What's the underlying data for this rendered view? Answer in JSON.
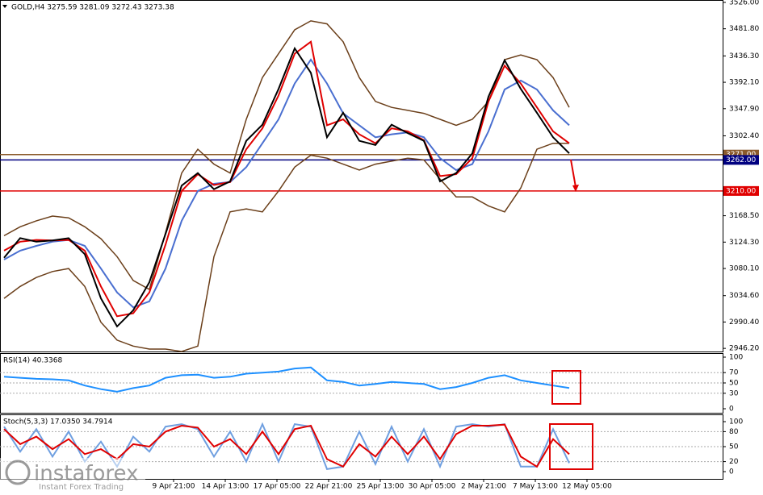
{
  "chart_data": [
    {
      "type": "line",
      "title": "GOLD,H4 3275.59 3281.09 3272.43 3273.38",
      "ylim": [
        2941,
        3530
      ],
      "yticks": [
        {
          "value": 3526,
          "label": "3526.00"
        },
        {
          "value": 3481.8,
          "label": "3481.80"
        },
        {
          "value": 3436.3,
          "label": "3436.30"
        },
        {
          "value": 3392.1,
          "label": "3392.10"
        },
        {
          "value": 3347.9,
          "label": "3347.90"
        },
        {
          "value": 3302.4,
          "label": "3302.40"
        },
        {
          "value": 3168.5,
          "label": "3168.50"
        },
        {
          "value": 3124.3,
          "label": "3124.30"
        },
        {
          "value": 3080.1,
          "label": "3080.10"
        },
        {
          "value": 3034.6,
          "label": "3034.60"
        },
        {
          "value": 2990.4,
          "label": "2990.40"
        },
        {
          "value": 2946.2,
          "label": "2946.20"
        }
      ],
      "levels": [
        {
          "value": 3271,
          "label": "3271.00",
          "color": "#8b5a2b"
        },
        {
          "value": 3262,
          "label": "3262.00",
          "color": "#000080"
        },
        {
          "value": 3210,
          "label": "3210.00",
          "color": "#e00000"
        }
      ],
      "series": [
        {
          "color": "#6b3f1a",
          "values": [
            3135,
            3150,
            3160,
            3168,
            3165,
            3150,
            3130,
            3100,
            3060,
            3045,
            3140,
            3240,
            3280,
            3255,
            3240,
            3330,
            3400,
            3440,
            3480,
            3495,
            3490,
            3460,
            3400,
            3360,
            3350,
            3345,
            3340,
            3330,
            3320,
            3330,
            3360,
            3430,
            3438,
            3430,
            3400,
            3350
          ]
        },
        {
          "color": "#6b3f1a",
          "values": [
            3030,
            3050,
            3065,
            3075,
            3080,
            3050,
            2990,
            2960,
            2950,
            2945,
            2945,
            2941,
            2950,
            3100,
            3175,
            3180,
            3175,
            3210,
            3250,
            3270,
            3265,
            3255,
            3245,
            3255,
            3260,
            3265,
            3262,
            3230,
            3200,
            3200,
            3185,
            3175,
            3215,
            3280,
            3290,
            3290
          ]
        },
        {
          "color": "#4a6fd0",
          "values": [
            3095,
            3110,
            3118,
            3125,
            3128,
            3118,
            3080,
            3040,
            3015,
            3025,
            3080,
            3160,
            3210,
            3222,
            3225,
            3250,
            3290,
            3330,
            3390,
            3430,
            3390,
            3340,
            3320,
            3300,
            3305,
            3308,
            3300,
            3265,
            3245,
            3255,
            3310,
            3380,
            3395,
            3380,
            3345,
            3320
          ]
        },
        {
          "color": "#e00000",
          "values": [
            3110,
            3125,
            3128,
            3127,
            3128,
            3110,
            3050,
            3000,
            3005,
            3040,
            3120,
            3210,
            3238,
            3220,
            3225,
            3280,
            3315,
            3370,
            3440,
            3460,
            3320,
            3330,
            3305,
            3290,
            3315,
            3310,
            3295,
            3235,
            3238,
            3265,
            3360,
            3420,
            3390,
            3350,
            3310,
            3290
          ]
        },
        {
          "color": "#000000",
          "values": [
            3098,
            3131,
            3125,
            3127,
            3131,
            3104,
            3030,
            2983,
            3010,
            3057,
            3138,
            3219,
            3240,
            3213,
            3226,
            3294,
            3321,
            3381,
            3449,
            3408,
            3300,
            3341,
            3294,
            3287,
            3321,
            3307,
            3294,
            3226,
            3240,
            3273,
            3368,
            3429,
            3381,
            3341,
            3300,
            3273
          ]
        }
      ]
    },
    {
      "type": "line",
      "title": "RSI(14) 40.3368",
      "ylim": [
        0,
        100
      ],
      "yticks": [
        100,
        70,
        50,
        30,
        0
      ],
      "levels": [
        70,
        50,
        30
      ],
      "series": [
        {
          "color": "#1e90ff",
          "values": [
            62,
            60,
            58,
            57,
            55,
            45,
            38,
            33,
            40,
            45,
            60,
            65,
            66,
            60,
            62,
            68,
            70,
            72,
            78,
            80,
            55,
            52,
            45,
            48,
            52,
            50,
            48,
            38,
            42,
            50,
            60,
            65,
            55,
            50,
            45,
            40.3368
          ]
        }
      ]
    },
    {
      "type": "line",
      "title": "Stoch(5,3,3) 17.0350 34.7914",
      "ylim": [
        0,
        100
      ],
      "yticks": [
        100,
        80,
        50,
        20,
        0
      ],
      "levels": [
        80,
        50,
        20
      ],
      "x_labels": [
        "9 Apr 21:00",
        "14 Apr 13:00",
        "17 Apr 05:00",
        "22 Apr 21:00",
        "25 Apr 13:00",
        "30 Apr 05:00",
        "2 May 21:00",
        "7 May 13:00",
        "12 May 05:00"
      ],
      "series": [
        {
          "color": "#6f9fe0",
          "values": [
            90,
            40,
            85,
            30,
            80,
            20,
            60,
            10,
            70,
            40,
            90,
            95,
            85,
            30,
            80,
            20,
            95,
            20,
            95,
            90,
            5,
            10,
            80,
            15,
            90,
            20,
            85,
            10,
            90,
            95,
            90,
            95,
            10,
            10,
            85,
            17.035
          ]
        },
        {
          "color": "#e00000",
          "values": [
            85,
            55,
            70,
            45,
            65,
            35,
            45,
            25,
            55,
            50,
            80,
            92,
            88,
            50,
            65,
            35,
            80,
            35,
            85,
            92,
            25,
            10,
            55,
            30,
            70,
            35,
            70,
            25,
            75,
            92,
            92,
            94,
            30,
            10,
            65,
            34.7914
          ]
        }
      ]
    }
  ],
  "watermark": {
    "brand": "instaforex",
    "tagline": "Instant Forex Trading"
  }
}
